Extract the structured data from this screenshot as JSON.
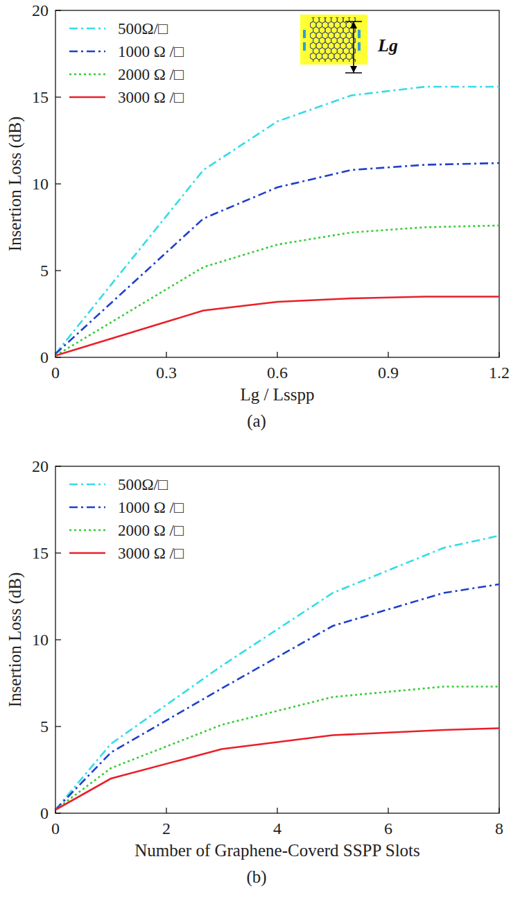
{
  "chart_data": [
    {
      "type": "line",
      "title": "(a)",
      "xlabel": "Lg / Lsspp",
      "ylabel": "Insertion Loss (dB)",
      "annotation": "Lg",
      "x": [
        0,
        0.4,
        0.6,
        0.8,
        1.0,
        1.2
      ],
      "xlim": [
        0,
        1.2
      ],
      "xticks": [
        0,
        0.3,
        0.6,
        0.9,
        1.2
      ],
      "ylim": [
        0,
        20
      ],
      "yticks": [
        0,
        5,
        10,
        15,
        20
      ],
      "legend": "upper left",
      "grid": false,
      "series": [
        {
          "name": "500Ω/□",
          "color": "#33dde6",
          "line_style": "dashdot",
          "values": [
            0.2,
            10.8,
            13.6,
            15.1,
            15.6,
            15.6
          ]
        },
        {
          "name": "1000 Ω /□",
          "color": "#1f3fcc",
          "line_style": "dashdot",
          "values": [
            0.2,
            8.0,
            9.8,
            10.8,
            11.1,
            11.2
          ]
        },
        {
          "name": "2000 Ω /□",
          "color": "#33cc33",
          "line_style": "dotted",
          "values": [
            0.1,
            5.2,
            6.5,
            7.2,
            7.5,
            7.6
          ]
        },
        {
          "name": "3000 Ω /□",
          "color": "#e8202a",
          "line_style": "solid",
          "values": [
            0.1,
            2.7,
            3.2,
            3.4,
            3.5,
            3.5
          ]
        }
      ]
    },
    {
      "type": "line",
      "title": "(b)",
      "xlabel": "Number of Graphene-Coverd SSPP Slots",
      "ylabel": "Insertion Loss (dB)",
      "x": [
        0,
        1,
        3,
        5,
        7,
        8
      ],
      "xlim": [
        0,
        8
      ],
      "xticks": [
        0,
        2,
        4,
        6,
        8
      ],
      "ylim": [
        0,
        20
      ],
      "yticks": [
        0,
        5,
        10,
        15,
        20
      ],
      "legend": "upper left",
      "grid": false,
      "series": [
        {
          "name": "500Ω/□",
          "color": "#33dde6",
          "line_style": "dashdot",
          "values": [
            0.2,
            4.0,
            8.5,
            12.7,
            15.3,
            16.0
          ]
        },
        {
          "name": "1000 Ω /□",
          "color": "#1f3fcc",
          "line_style": "dashdot",
          "values": [
            0.2,
            3.5,
            7.2,
            10.8,
            12.7,
            13.2
          ]
        },
        {
          "name": "2000 Ω /□",
          "color": "#33cc33",
          "line_style": "dotted",
          "values": [
            0.2,
            2.6,
            5.1,
            6.7,
            7.3,
            7.3
          ]
        },
        {
          "name": "3000 Ω /□",
          "color": "#e8202a",
          "line_style": "solid",
          "values": [
            0.2,
            2.0,
            3.7,
            4.5,
            4.8,
            4.9
          ]
        }
      ]
    }
  ]
}
